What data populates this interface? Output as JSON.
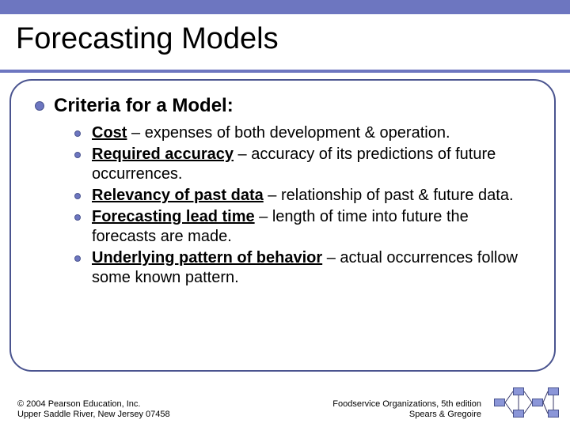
{
  "title": "Forecasting Models",
  "heading": "Criteria for a Model:",
  "items": [
    {
      "term": "Cost",
      "desc": " – expenses of both development & operation."
    },
    {
      "term": "Required accuracy",
      "desc": " – accuracy of its predictions of future occurrences."
    },
    {
      "term": "Relevancy of past data",
      "desc": " – relationship of past & future data."
    },
    {
      "term": "Forecasting lead time",
      "desc": " – length of time into future the forecasts are made."
    },
    {
      "term": "Underlying pattern of behavior",
      "desc": " – actual occurrences follow some known pattern."
    }
  ],
  "footer": {
    "left1": "© 2004 Pearson Education, Inc.",
    "left2": "Upper Saddle River, New Jersey 07458",
    "right1": "Foodservice Organizations, 5th edition",
    "right2": "Spears & Gregoire"
  },
  "colors": {
    "band": "#6d76c0",
    "frame": "#4a548f",
    "box": "#8b96d8"
  }
}
